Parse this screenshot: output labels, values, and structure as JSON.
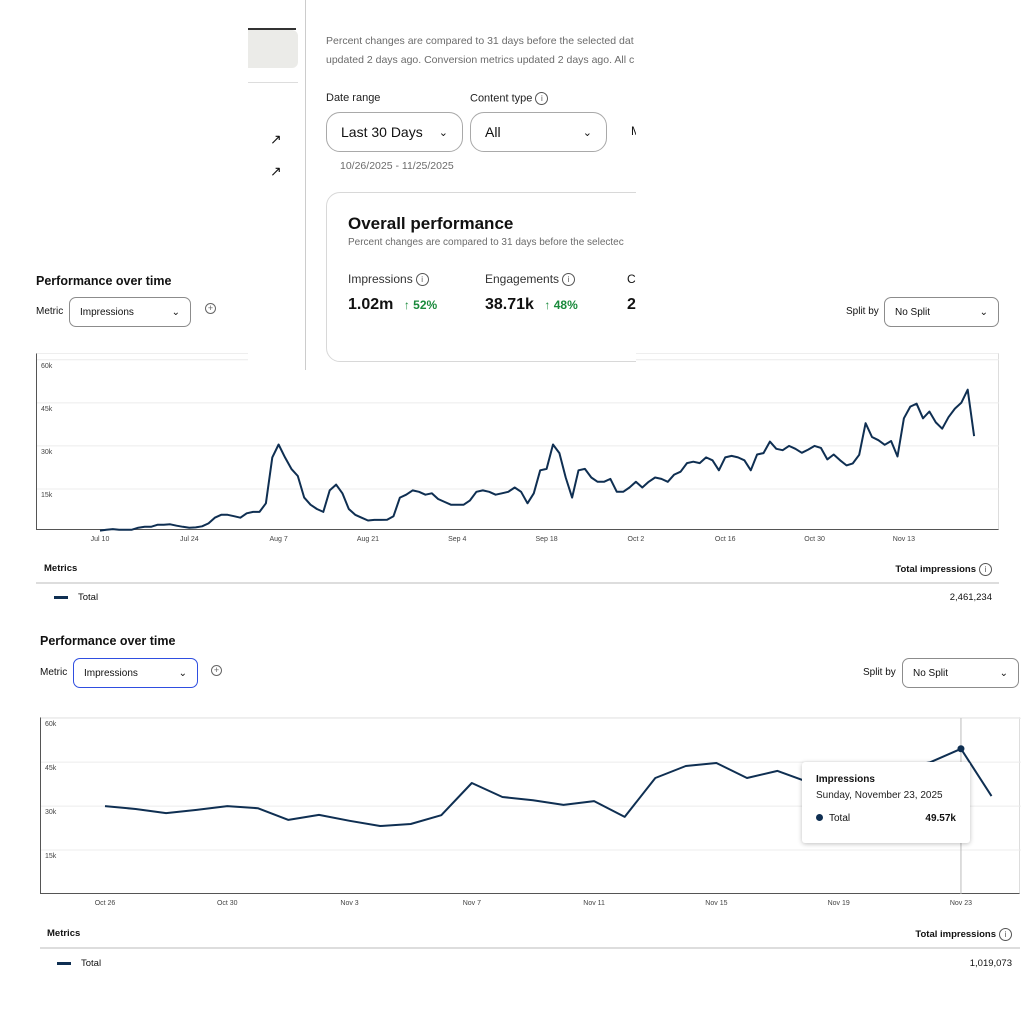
{
  "top_panel": {
    "notice_line1": "Percent changes are compared to 31 days before the selected dat",
    "notice_line2": "updated 2 days ago. Conversion metrics updated 2 days ago. All c",
    "date_range_label": "Date range",
    "date_range_value": "Last 30 Days",
    "content_type_label": "Content type",
    "content_type_value": "All",
    "cut_dropdown_letter": "M",
    "date_span": "10/26/2025 - 11/25/2025",
    "overall": {
      "title": "Overall performance",
      "subtitle": "Percent changes are compared to 31 days before the selectec",
      "metrics": [
        {
          "label": "Impressions",
          "value": "1.02m",
          "change": "52%"
        },
        {
          "label": "Engagements",
          "value": "38.71k",
          "change": "48%"
        }
      ],
      "cut_label": "C",
      "cut_value": "2"
    },
    "positive_color": "#1a8a3c"
  },
  "section1": {
    "title": "Performance over time",
    "metric_label": "Metric",
    "metric_value": "Impressions",
    "split_label": "Split by",
    "split_value": "No Split",
    "metrics_header": "Metrics",
    "total_header": "Total impressions",
    "row_label": "Total",
    "row_value": "2,461,234"
  },
  "section2": {
    "title": "Performance over time",
    "metric_label": "Metric",
    "metric_value": "Impressions",
    "split_label": "Split by",
    "split_value": "No Split",
    "metrics_header": "Metrics",
    "total_header": "Total impressions",
    "row_label": "Total",
    "row_value": "1,019,073",
    "tooltip": {
      "title": "Impressions",
      "date": "Sunday, November 23, 2025",
      "series": "Total",
      "value": "49.57k"
    }
  },
  "chart_data": [
    {
      "type": "line",
      "title": "Performance over time",
      "series_name": "Total",
      "x_start": "Jul 10",
      "x_step": "1 day",
      "x_ticks": [
        "Jul 10",
        "Jul 24",
        "Aug 7",
        "Aug 21",
        "Sep 4",
        "Sep 18",
        "Oct 2",
        "Oct 16",
        "Oct 30",
        "Nov 13"
      ],
      "y_ticks": [
        "60k",
        "45k",
        "30k",
        "15k"
      ],
      "ylim": [
        0,
        60
      ],
      "y_unit": "thousands",
      "color": "#0f2f52",
      "values": [
        0.5,
        0.8,
        1,
        0.8,
        0.8,
        0.8,
        1.5,
        1.8,
        1.8,
        2.5,
        2.5,
        2.7,
        2.2,
        1.8,
        1.5,
        1.6,
        2,
        3,
        5,
        6,
        6,
        5.5,
        5,
        6.5,
        7,
        7,
        10,
        26,
        30.5,
        26,
        22,
        19.5,
        12,
        9.5,
        8,
        7,
        14.5,
        16.5,
        13.5,
        8,
        6,
        5,
        4,
        4.2,
        4.2,
        4.3,
        5.5,
        12,
        13,
        14.5,
        14,
        13,
        13.5,
        11.5,
        10.5,
        9.5,
        9.5,
        9.5,
        11,
        14,
        14.5,
        14,
        13,
        13.5,
        14,
        15.5,
        14,
        10,
        13.5,
        21.5,
        22,
        30.5,
        27.5,
        19,
        12,
        21.5,
        22,
        19,
        17.5,
        17.5,
        18.5,
        14,
        14,
        15.5,
        17.5,
        15.5,
        17.5,
        19,
        18.5,
        17.5,
        20,
        21,
        24,
        24.5,
        24,
        26,
        25,
        21.5,
        26,
        26.5,
        26,
        25,
        21.5,
        27,
        27.5,
        31.5,
        29,
        28.5,
        30,
        29,
        27.6,
        28.7,
        30,
        29.3,
        25.3,
        27,
        25,
        23.2,
        23.9,
        26.9,
        37.9,
        33.1,
        32,
        30.4,
        31.7,
        26.3,
        39.6,
        43.7,
        44.7,
        39.6,
        42,
        38.2,
        36,
        40,
        43,
        45,
        49.57,
        33.4
      ]
    },
    {
      "type": "line",
      "title": "Performance over time",
      "series_name": "Total",
      "x_start": "Oct 26",
      "x_step": "1 day",
      "x_ticks": [
        "Oct 26",
        "Oct 30",
        "Nov 3",
        "Nov 7",
        "Nov 11",
        "Nov 15",
        "Nov 19",
        "Nov 23"
      ],
      "y_ticks": [
        "60k",
        "45k",
        "30k",
        "15k"
      ],
      "ylim": [
        0,
        60
      ],
      "y_unit": "thousands",
      "color": "#0f2f52",
      "highlight_index": 28,
      "values": [
        30,
        29,
        27.6,
        28.7,
        30,
        29.3,
        25.3,
        27,
        25,
        23.2,
        23.9,
        26.9,
        37.9,
        33.1,
        32,
        30.4,
        31.7,
        26.3,
        39.6,
        43.7,
        44.7,
        39.6,
        42,
        38.2,
        36,
        40,
        43,
        45,
        49.57,
        33.4
      ]
    }
  ]
}
